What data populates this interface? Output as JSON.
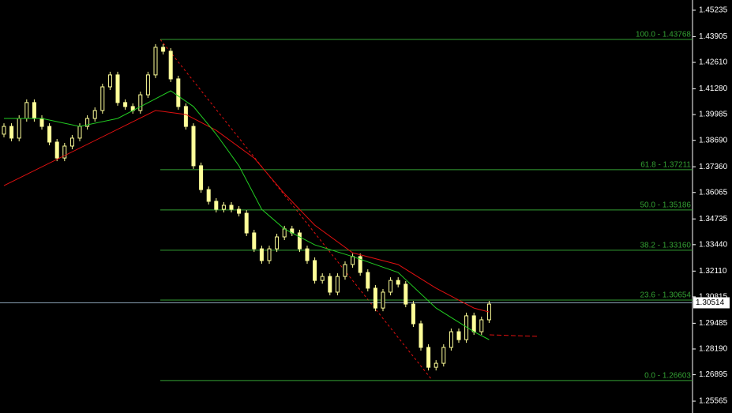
{
  "chart_data": {
    "type": "candlestick",
    "ylim": [
      1.2497,
      1.4575
    ],
    "yticks": [
      1.45235,
      1.43905,
      {
        "value": 1.4261,
        "label": "1.42610"
      },
      {
        "value": 1.4128,
        "label": "1.41280"
      },
      1.39985,
      {
        "value": 1.3869,
        "label": "1.38690"
      },
      {
        "value": 1.3736,
        "label": "1.37360"
      },
      1.36065,
      1.34735,
      {
        "value": 1.3344,
        "label": "1.33440"
      },
      {
        "value": 1.3211,
        "label": "1.32110"
      },
      1.30815,
      1.29485,
      {
        "value": 1.2819,
        "label": "1.28190"
      },
      1.26895,
      1.25565
    ],
    "open": [
      1.39,
      1.3939,
      1.388,
      1.3979,
      1.4059,
      1.3979,
      1.3939,
      1.386,
      1.378,
      1.384,
      1.388,
      1.3939,
      1.3979,
      1.4019,
      1.4138,
      1.4198,
      1.4059,
      1.4039,
      1.4019,
      1.4098,
      1.4198,
      1.4337,
      1.4317,
      1.4178,
      1.4039,
      1.3939,
      1.3741,
      1.3621,
      1.3562,
      1.3522,
      1.3542,
      1.3522,
      1.3502,
      1.3403,
      1.3323,
      1.3264,
      1.3323,
      1.3383,
      1.3423,
      1.3403,
      1.3323,
      1.3264,
      1.3164,
      1.3184,
      1.3105,
      1.3184,
      1.3244,
      1.3284,
      1.3204,
      1.3125,
      1.3025,
      1.3105,
      1.3164,
      1.3145,
      1.3045,
      1.2946,
      1.2827,
      1.2727,
      1.2747,
      1.2827,
      1.2906,
      1.2866,
      1.2986,
      1.2906,
      1.2966
    ],
    "close": [
      1.3939,
      1.388,
      1.3979,
      1.4059,
      1.3979,
      1.3939,
      1.386,
      1.378,
      1.384,
      1.388,
      1.3939,
      1.3979,
      1.4019,
      1.4138,
      1.4198,
      1.4059,
      1.4039,
      1.4019,
      1.4098,
      1.4198,
      1.4337,
      1.4317,
      1.4178,
      1.4039,
      1.3939,
      1.3741,
      1.3621,
      1.3562,
      1.3522,
      1.3542,
      1.3522,
      1.3502,
      1.3403,
      1.3323,
      1.3264,
      1.3323,
      1.3383,
      1.3423,
      1.3403,
      1.3323,
      1.3264,
      1.3164,
      1.3184,
      1.3105,
      1.3184,
      1.3244,
      1.3284,
      1.3204,
      1.3125,
      1.3025,
      1.3105,
      1.3164,
      1.3145,
      1.3045,
      1.2946,
      1.2827,
      1.2727,
      1.2747,
      1.2827,
      1.2906,
      1.2866,
      1.2986,
      1.2906,
      1.2966,
      1.3045
    ],
    "color": "#ffff99",
    "moving_averages": [
      {
        "color": "#e01010",
        "x": [
          0,
          20,
          24,
          28,
          33,
          37,
          41,
          46,
          52,
          57,
          62,
          64
        ],
        "values": [
          1.3641,
          1.4019,
          1.3999,
          1.3919,
          1.378,
          1.3601,
          1.3442,
          1.3303,
          1.3244,
          1.3125,
          1.3025,
          1.3005
        ]
      },
      {
        "color": "#22cc22",
        "x": [
          0,
          5,
          10,
          15,
          20,
          22,
          25,
          28,
          31,
          34,
          37,
          41,
          46,
          52,
          57,
          62,
          64
        ],
        "values": [
          1.3979,
          1.3979,
          1.3939,
          1.3979,
          1.4078,
          1.4118,
          1.4039,
          1.39,
          1.3741,
          1.3522,
          1.3423,
          1.3343,
          1.3284,
          1.3204,
          1.3025,
          1.2906,
          1.2866
        ]
      }
    ],
    "fib_levels": [
      {
        "value": 1.43768,
        "label": "100.0 - 1.43768"
      },
      {
        "value": 1.37211,
        "label": "61.8 - 1.37211"
      },
      {
        "value": 1.35186,
        "label": "50.0 - 1.35186"
      },
      {
        "value": 1.3316,
        "label": "38.2 - 1.33160"
      },
      {
        "value": 1.30654,
        "label": "23.6 - 1.30654"
      },
      {
        "value": 1.26603,
        "label": "0.0 - 1.26603"
      }
    ],
    "fib_color": "#33a033",
    "current_price": 1.30514
  }
}
